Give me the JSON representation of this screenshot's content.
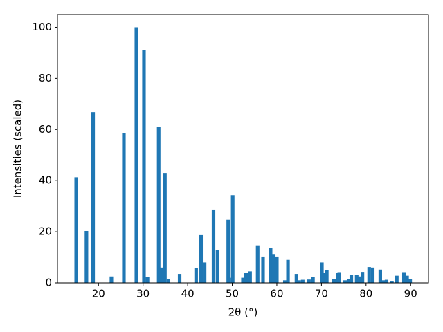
{
  "chart_data": {
    "type": "bar",
    "x_label": "2θ (°)",
    "y_label": "Intensities (scaled)",
    "x": [
      15.0,
      17.3,
      18.8,
      22.9,
      25.7,
      28.5,
      30.2,
      31.0,
      33.5,
      34.0,
      34.9,
      35.7,
      38.2,
      41.9,
      43.0,
      43.8,
      45.8,
      46.7,
      49.1,
      49.3,
      50.1,
      52.4,
      53.1,
      54.0,
      55.7,
      56.9,
      58.6,
      59.3,
      60.0,
      61.8,
      62.5,
      64.4,
      65.0,
      65.8,
      67.2,
      68.1,
      70.1,
      70.8,
      71.2,
      72.8,
      73.6,
      74.0,
      75.3,
      76.1,
      76.7,
      77.9,
      78.5,
      79.2,
      80.7,
      81.5,
      83.2,
      84.0,
      84.6,
      85.8,
      86.9,
      88.5,
      89.2,
      89.9
    ],
    "values": [
      41.3,
      20.3,
      66.8,
      2.5,
      58.5,
      100,
      91,
      2.2,
      61,
      6,
      43,
      1.5,
      3.5,
      5.7,
      18.7,
      8,
      28.7,
      12.8,
      24.7,
      2,
      34.3,
      2,
      4,
      4.5,
      14.7,
      10.3,
      13.8,
      11.3,
      10.3,
      1,
      9,
      3.5,
      1,
      1.2,
      1.3,
      2.3,
      8,
      4,
      5,
      1.5,
      4,
      4.2,
      1,
      1.5,
      3.2,
      3,
      2.5,
      4.3,
      6.2,
      6,
      5.2,
      1,
      1.2,
      0.8,
      2.8,
      4.2,
      2.8,
      1.5
    ],
    "color": "#1f77b4",
    "xlim": [
      10.8,
      94.0
    ],
    "xticks": [
      20,
      30,
      40,
      50,
      60,
      70,
      80,
      90
    ],
    "ylim": [
      0,
      105
    ],
    "yticks": [
      0,
      20,
      40,
      60,
      80,
      100
    ],
    "grid": false
  }
}
